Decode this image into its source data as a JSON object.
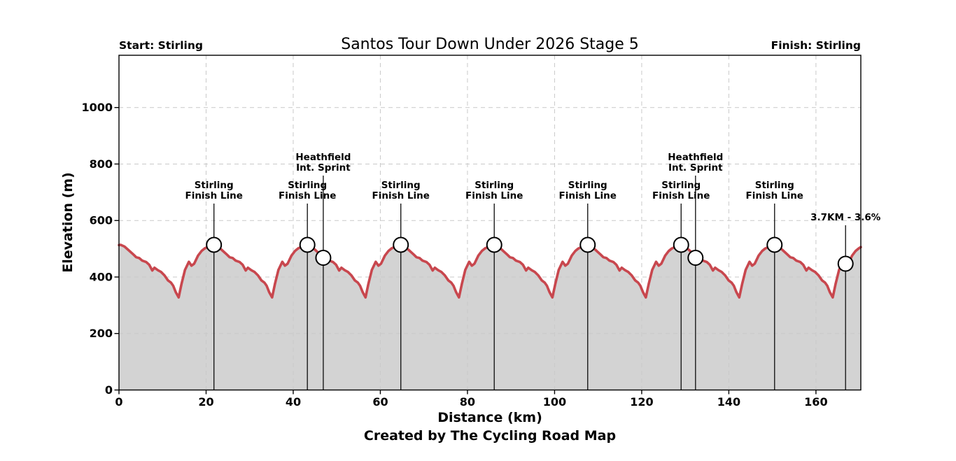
{
  "page": {
    "background": "#ffffff"
  },
  "chart_data": {
    "type": "area",
    "title": "Santos Tour Down Under 2026 Stage 5",
    "start_label": "Start: Stirling",
    "finish_label": "Finish: Stirling",
    "xlabel": "Distance (km)",
    "ylabel": "Elevation (m)",
    "caption": "Created by The Cycling Road Map",
    "xlim": [
      0,
      170.3
    ],
    "ylim": [
      0,
      1185
    ],
    "xticks": [
      0,
      20,
      40,
      60,
      80,
      100,
      120,
      140,
      160
    ],
    "yticks": [
      0,
      200,
      400,
      600,
      800,
      1000
    ],
    "grid": true,
    "legend": "none",
    "colors": {
      "profile_line": "#c8474e",
      "profile_fill": "#d3d3d3",
      "grid": "#c9c9c9",
      "marker_line": "#1a1a1a",
      "marker_fill": "#ffffff",
      "marker_edge": "#000000",
      "frame": "#000000"
    },
    "profile": {
      "units": [
        "km",
        "m"
      ],
      "description": "Circuit race: 8 identical laps, each lap descends from ~514 m to ~328 m then climbs back",
      "start_point": [
        0,
        513
      ],
      "end_point": [
        170.3,
        506
      ],
      "first_peak_km": 0.35,
      "lap_length_km": 21.45,
      "num_laps": 8,
      "peak_elevation_m": 514,
      "min_elevation_m": 328,
      "lap_shape": [
        [
          0,
          514
        ],
        [
          0.9,
          508
        ],
        [
          2.0,
          493
        ],
        [
          3.0,
          479
        ],
        [
          3.6,
          470
        ],
        [
          4.3,
          467
        ],
        [
          5.0,
          458
        ],
        [
          5.9,
          453
        ],
        [
          6.6,
          443
        ],
        [
          7.3,
          423
        ],
        [
          7.8,
          433
        ],
        [
          8.6,
          424
        ],
        [
          9.3,
          418
        ],
        [
          10.1,
          406
        ],
        [
          10.9,
          388
        ],
        [
          11.6,
          380
        ],
        [
          12.1,
          369
        ],
        [
          12.7,
          346
        ],
        [
          13.35,
          328
        ],
        [
          14.0,
          375
        ],
        [
          14.8,
          425
        ],
        [
          15.7,
          454
        ],
        [
          16.3,
          440
        ],
        [
          16.9,
          447
        ],
        [
          17.8,
          476
        ],
        [
          18.6,
          492
        ],
        [
          19.3,
          501
        ],
        [
          20.0,
          506
        ],
        [
          20.7,
          511
        ]
      ]
    },
    "annotations": [
      {
        "kind": "finish_line",
        "label_lines": [
          "Stirling",
          "Finish Line"
        ],
        "km": 21.8,
        "elevation_m": 514
      },
      {
        "kind": "finish_line",
        "label_lines": [
          "Stirling",
          "Finish Line"
        ],
        "km": 43.25,
        "elevation_m": 514
      },
      {
        "kind": "sprint",
        "label_lines": [
          "Heathfield",
          "Int. Sprint"
        ],
        "km": 46.9,
        "elevation_m": 468
      },
      {
        "kind": "finish_line",
        "label_lines": [
          "Stirling",
          "Finish Line"
        ],
        "km": 64.7,
        "elevation_m": 514
      },
      {
        "kind": "finish_line",
        "label_lines": [
          "Stirling",
          "Finish Line"
        ],
        "km": 86.15,
        "elevation_m": 514
      },
      {
        "kind": "finish_line",
        "label_lines": [
          "Stirling",
          "Finish Line"
        ],
        "km": 107.6,
        "elevation_m": 514
      },
      {
        "kind": "finish_line",
        "label_lines": [
          "Stirling",
          "Finish Line"
        ],
        "km": 129.05,
        "elevation_m": 514
      },
      {
        "kind": "sprint",
        "label_lines": [
          "Heathfield",
          "Int. Sprint"
        ],
        "km": 132.35,
        "elevation_m": 468
      },
      {
        "kind": "finish_line",
        "label_lines": [
          "Stirling",
          "Finish Line"
        ],
        "km": 150.5,
        "elevation_m": 514
      },
      {
        "kind": "km_to_go",
        "label_lines": [
          "3.7KM - 3.6%"
        ],
        "km": 166.8,
        "elevation_m": 447
      }
    ]
  }
}
